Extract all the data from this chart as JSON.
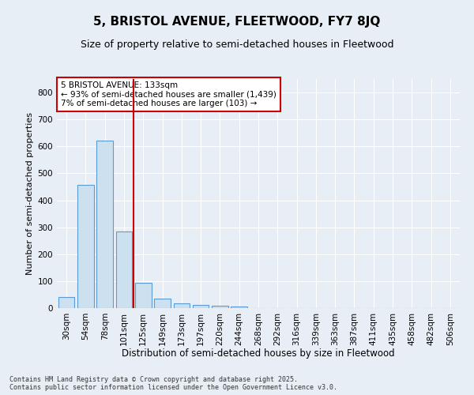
{
  "title": "5, BRISTOL AVENUE, FLEETWOOD, FY7 8JQ",
  "subtitle": "Size of property relative to semi-detached houses in Fleetwood",
  "xlabel": "Distribution of semi-detached houses by size in Fleetwood",
  "ylabel": "Number of semi-detached properties",
  "categories": [
    "30sqm",
    "54sqm",
    "78sqm",
    "101sqm",
    "125sqm",
    "149sqm",
    "173sqm",
    "197sqm",
    "220sqm",
    "244sqm",
    "268sqm",
    "292sqm",
    "316sqm",
    "339sqm",
    "363sqm",
    "387sqm",
    "411sqm",
    "435sqm",
    "458sqm",
    "482sqm",
    "506sqm"
  ],
  "values": [
    42,
    456,
    620,
    285,
    93,
    35,
    18,
    12,
    8,
    5,
    0,
    0,
    0,
    0,
    0,
    0,
    0,
    0,
    0,
    0,
    0
  ],
  "bar_color": "#cce0f0",
  "bar_edge_color": "#5b9bd5",
  "vline_color": "#cc0000",
  "vline_pos": 3.5,
  "annotation_text": "5 BRISTOL AVENUE: 133sqm\n← 93% of semi-detached houses are smaller (1,439)\n7% of semi-detached houses are larger (103) →",
  "annotation_box_edgecolor": "#cc0000",
  "ylim": [
    0,
    850
  ],
  "yticks": [
    0,
    100,
    200,
    300,
    400,
    500,
    600,
    700,
    800
  ],
  "background_color": "#e8eef5",
  "grid_color": "#ffffff",
  "footer": "Contains HM Land Registry data © Crown copyright and database right 2025.\nContains public sector information licensed under the Open Government Licence v3.0.",
  "title_fontsize": 11,
  "subtitle_fontsize": 9,
  "xlabel_fontsize": 8.5,
  "ylabel_fontsize": 8,
  "tick_fontsize": 7.5,
  "footer_fontsize": 6,
  "annotation_fontsize": 7.5
}
